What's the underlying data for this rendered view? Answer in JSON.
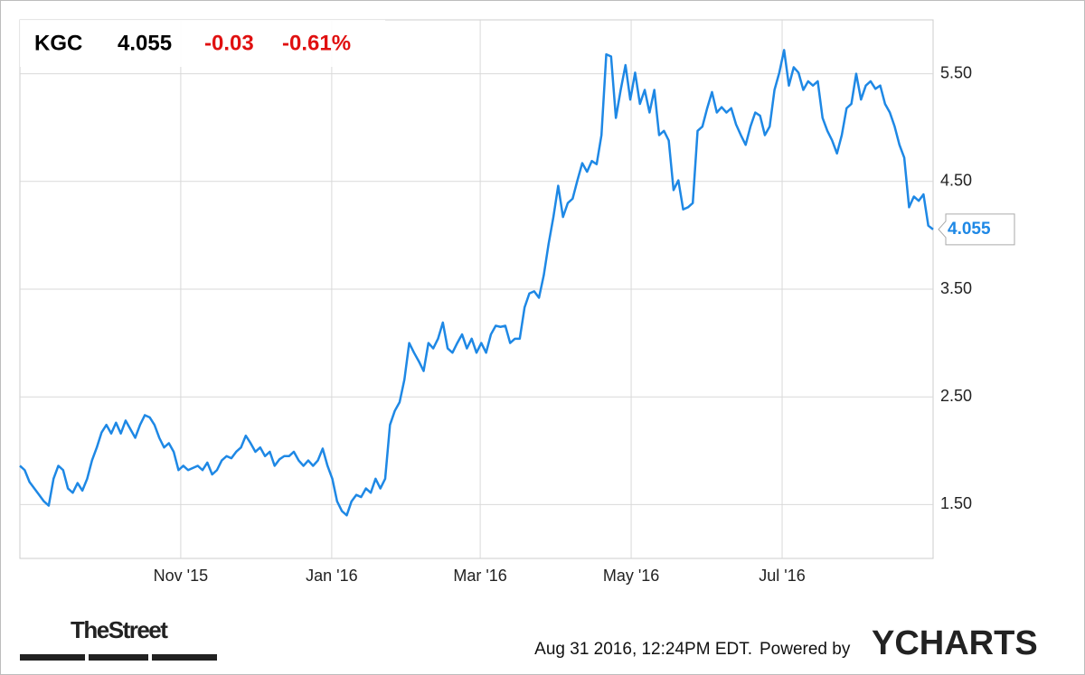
{
  "chart_data": {
    "type": "line",
    "ticker": "KGC",
    "price": 4.055,
    "change": "-0.03",
    "change_pct": "-0.61%",
    "xlim": [
      "2015-08-28",
      "2016-08-31"
    ],
    "xticks": [
      {
        "value": "2015-11-01",
        "label": "Nov '15"
      },
      {
        "value": "2016-01-01",
        "label": "Jan '16"
      },
      {
        "value": "2016-03-01",
        "label": "Mar '16"
      },
      {
        "value": "2016-05-01",
        "label": "May '16"
      },
      {
        "value": "2016-07-01",
        "label": "Jul '16"
      }
    ],
    "ylim": [
      1.0,
      6.0
    ],
    "yticks": [
      {
        "value": 1.5,
        "label": "1.50"
      },
      {
        "value": 2.5,
        "label": "2.50"
      },
      {
        "value": 3.5,
        "label": "3.50"
      },
      {
        "value": 4.5,
        "label": "4.50"
      },
      {
        "value": 5.5,
        "label": "5.50"
      }
    ],
    "grid": true,
    "series": [
      {
        "name": "KGC",
        "color": "#1e88e5",
        "values": [
          1.86,
          1.82,
          1.71,
          1.65,
          1.59,
          1.53,
          1.49,
          1.74,
          1.86,
          1.82,
          1.65,
          1.61,
          1.7,
          1.63,
          1.74,
          1.91,
          2.03,
          2.17,
          2.24,
          2.16,
          2.26,
          2.16,
          2.28,
          2.2,
          2.12,
          2.24,
          2.33,
          2.31,
          2.24,
          2.12,
          2.03,
          2.07,
          1.99,
          1.82,
          1.86,
          1.82,
          1.84,
          1.86,
          1.82,
          1.89,
          1.78,
          1.82,
          1.91,
          1.95,
          1.93,
          1.99,
          2.03,
          2.14,
          2.07,
          1.99,
          2.03,
          1.95,
          1.99,
          1.86,
          1.92,
          1.95,
          1.95,
          1.99,
          1.91,
          1.86,
          1.91,
          1.86,
          1.91,
          2.02,
          1.86,
          1.74,
          1.53,
          1.44,
          1.4,
          1.53,
          1.59,
          1.57,
          1.65,
          1.61,
          1.74,
          1.65,
          1.74,
          2.24,
          2.37,
          2.45,
          2.66,
          3.0,
          2.91,
          2.83,
          2.74,
          3.0,
          2.95,
          3.04,
          3.19,
          2.95,
          2.91,
          3.0,
          3.08,
          2.95,
          3.04,
          2.91,
          3.0,
          2.91,
          3.08,
          3.16,
          3.15,
          3.16,
          3.0,
          3.04,
          3.04,
          3.33,
          3.46,
          3.48,
          3.42,
          3.63,
          3.92,
          4.17,
          4.46,
          4.17,
          4.3,
          4.34,
          4.51,
          4.67,
          4.59,
          4.69,
          4.66,
          4.93,
          5.68,
          5.66,
          5.09,
          5.35,
          5.58,
          5.26,
          5.51,
          5.22,
          5.35,
          5.14,
          5.35,
          4.93,
          4.97,
          4.88,
          4.42,
          4.51,
          4.24,
          4.26,
          4.3,
          4.97,
          5.01,
          5.18,
          5.33,
          5.14,
          5.19,
          5.14,
          5.18,
          5.03,
          4.93,
          4.84,
          5.01,
          5.14,
          5.11,
          4.93,
          5.01,
          5.35,
          5.51,
          5.72,
          5.39,
          5.56,
          5.51,
          5.35,
          5.43,
          5.39,
          5.43,
          5.09,
          4.97,
          4.88,
          4.76,
          4.93,
          5.18,
          5.22,
          5.5,
          5.26,
          5.39,
          5.43,
          5.36,
          5.39,
          5.22,
          5.14,
          5.01,
          4.84,
          4.72,
          4.26,
          4.36,
          4.32,
          4.38,
          4.09,
          4.055
        ]
      }
    ],
    "timestamp": "Aug 31 2016, 12:24PM EDT.",
    "powered_by": "Powered by",
    "brand": "YCHARTS",
    "source": "TheStreet"
  }
}
